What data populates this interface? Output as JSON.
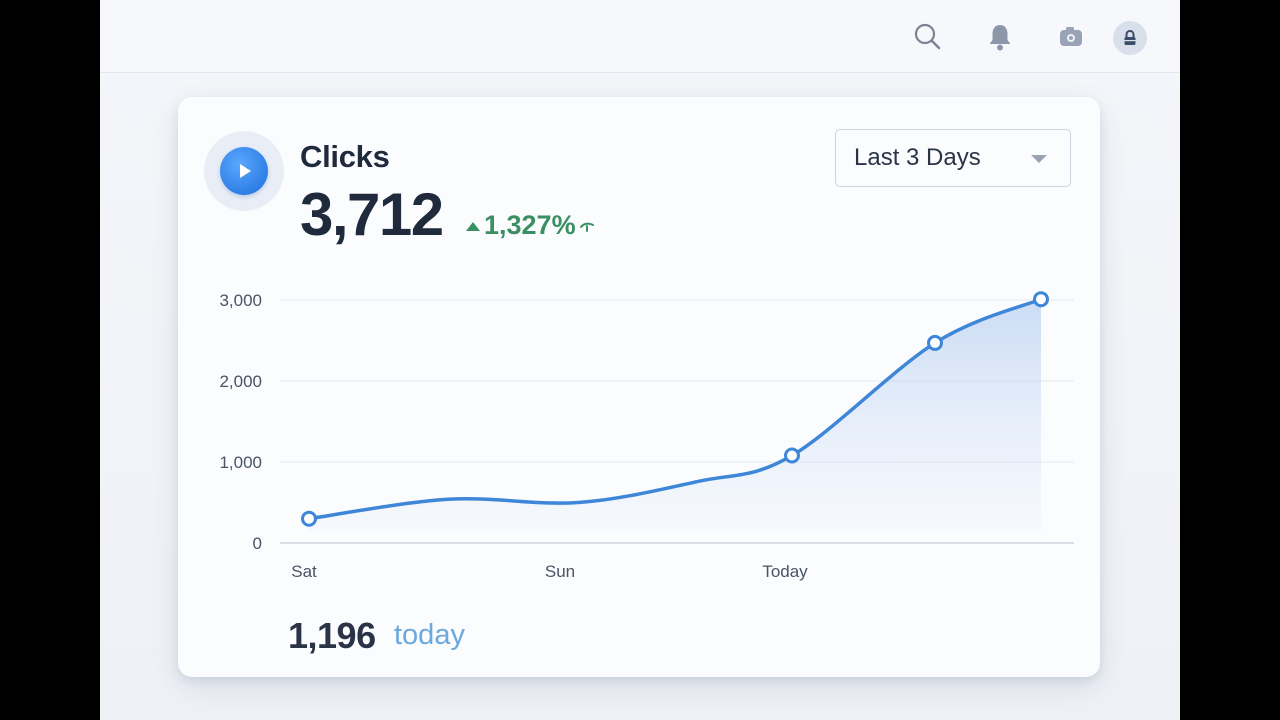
{
  "topbar": {
    "icons": [
      "search-icon",
      "bell-icon",
      "camera-icon",
      "lock-icon"
    ]
  },
  "metric": {
    "label": "Clicks",
    "value": "3,712",
    "change": "1,327%",
    "icon": "play-icon"
  },
  "range": {
    "selected": "Last 3 Days"
  },
  "footer": {
    "today_value": "1,196",
    "today_label": "today"
  },
  "colors": {
    "accent": "#3d86d8",
    "positive": "#3a8f63",
    "text": "#1f2a3d"
  },
  "chart_data": {
    "type": "area",
    "x_tick_labels": [
      "Sat",
      "Sun",
      "Today"
    ],
    "y_ticks": [
      0,
      1000,
      2000,
      3000
    ],
    "y_tick_labels": [
      "0",
      "1,000",
      "2,000",
      "3,000"
    ],
    "ylim": [
      0,
      3000
    ],
    "grid": true,
    "series": [
      {
        "x": [
          0,
          0.5,
          1,
          1.5,
          2,
          2.5,
          3
        ],
        "values": [
          300,
          540,
          500,
          760,
          1080,
          2470,
          3010
        ],
        "markers": [
          true,
          false,
          false,
          false,
          true,
          true,
          true
        ]
      }
    ]
  }
}
